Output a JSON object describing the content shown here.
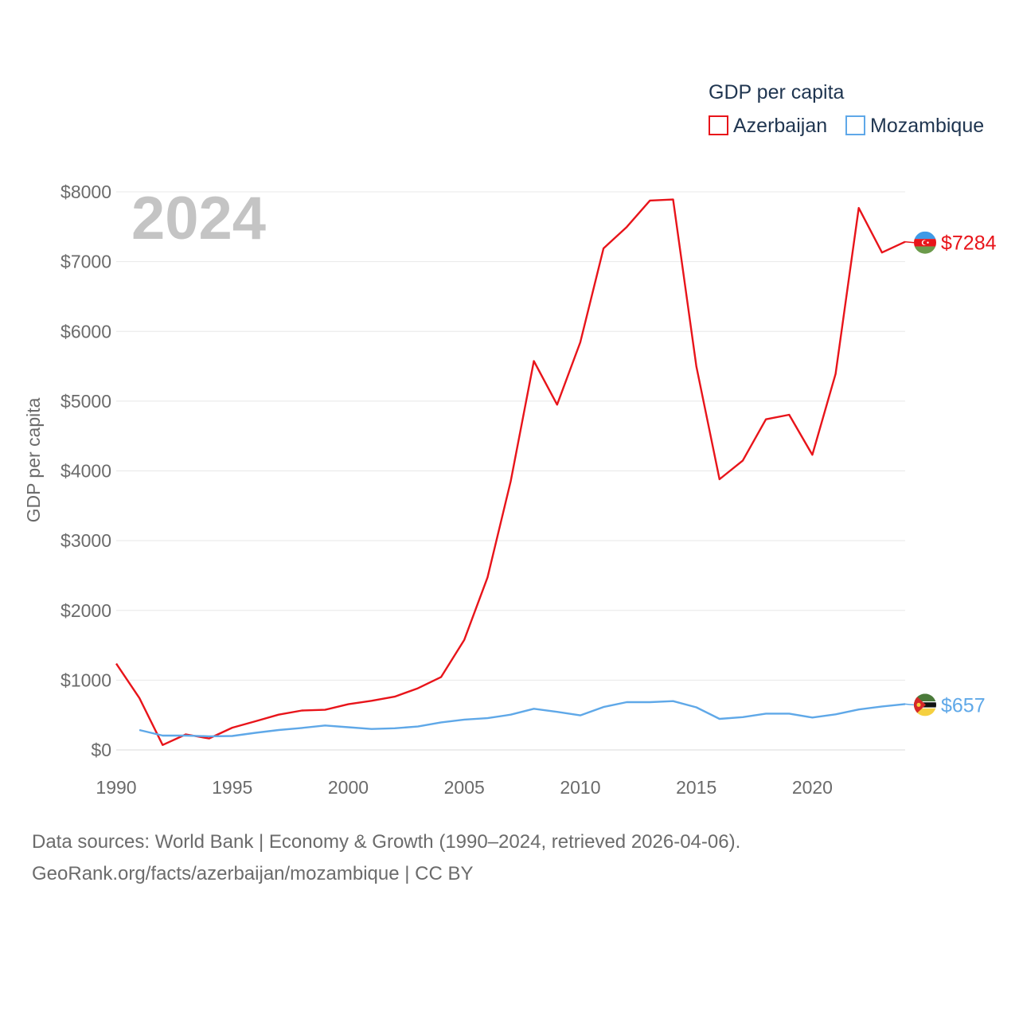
{
  "chart_data": {
    "type": "line",
    "title": "GDP per capita",
    "year_label": "2024",
    "ylabel": "GDP per capita",
    "xlabel": "",
    "xlim": [
      1990,
      2024
    ],
    "ylim": [
      0,
      8000
    ],
    "x_ticks": [
      1990,
      1995,
      2000,
      2005,
      2010,
      2015,
      2020
    ],
    "y_ticks": [
      0,
      1000,
      2000,
      3000,
      4000,
      5000,
      6000,
      7000,
      8000
    ],
    "y_tick_labels": [
      "$0",
      "$1000",
      "$2000",
      "$3000",
      "$4000",
      "$5000",
      "$6000",
      "$7000",
      "$8000"
    ],
    "legend_title": "GDP per capita",
    "legend_position": "top-right",
    "series": [
      {
        "name": "Azerbaijan",
        "color": "#e8141a",
        "flag_icon": "azerbaijan-flag-icon",
        "end_label": "$7284",
        "x": [
          1990,
          1991,
          1992,
          1993,
          1994,
          1995,
          1996,
          1997,
          1998,
          1999,
          2000,
          2001,
          2002,
          2003,
          2004,
          2005,
          2006,
          2007,
          2008,
          2009,
          2010,
          2011,
          2012,
          2013,
          2014,
          2015,
          2016,
          2017,
          2018,
          2019,
          2020,
          2021,
          2022,
          2023,
          2024
        ],
        "values": [
          1237,
          744,
          71,
          222,
          164,
          318,
          411,
          506,
          565,
          575,
          655,
          704,
          763,
          883,
          1045,
          1578,
          2473,
          3851,
          5575,
          4950,
          5843,
          7190,
          7496,
          7876,
          7891,
          5500,
          3880,
          4147,
          4740,
          4805,
          4230,
          5390,
          7770,
          7130,
          7284
        ]
      },
      {
        "name": "Mozambique",
        "color": "#5fa8e8",
        "flag_icon": "mozambique-flag-icon",
        "end_label": "$657",
        "x": [
          1991,
          1992,
          1993,
          1994,
          1995,
          1996,
          1997,
          1998,
          1999,
          2000,
          2001,
          2002,
          2003,
          2004,
          2005,
          2006,
          2007,
          2008,
          2009,
          2010,
          2011,
          2012,
          2013,
          2014,
          2015,
          2016,
          2017,
          2018,
          2019,
          2020,
          2021,
          2022,
          2023,
          2024
        ],
        "values": [
          285,
          205,
          205,
          195,
          200,
          245,
          285,
          315,
          350,
          325,
          300,
          310,
          335,
          395,
          435,
          455,
          505,
          590,
          545,
          495,
          615,
          685,
          685,
          700,
          610,
          445,
          470,
          520,
          520,
          465,
          510,
          580,
          623,
          657
        ]
      }
    ]
  },
  "footer": {
    "line1": "Data sources: World Bank | Economy & Growth (1990–2024, retrieved 2026-04-06).",
    "line2": "GeoRank.org/facts/azerbaijan/mozambique | CC BY"
  }
}
